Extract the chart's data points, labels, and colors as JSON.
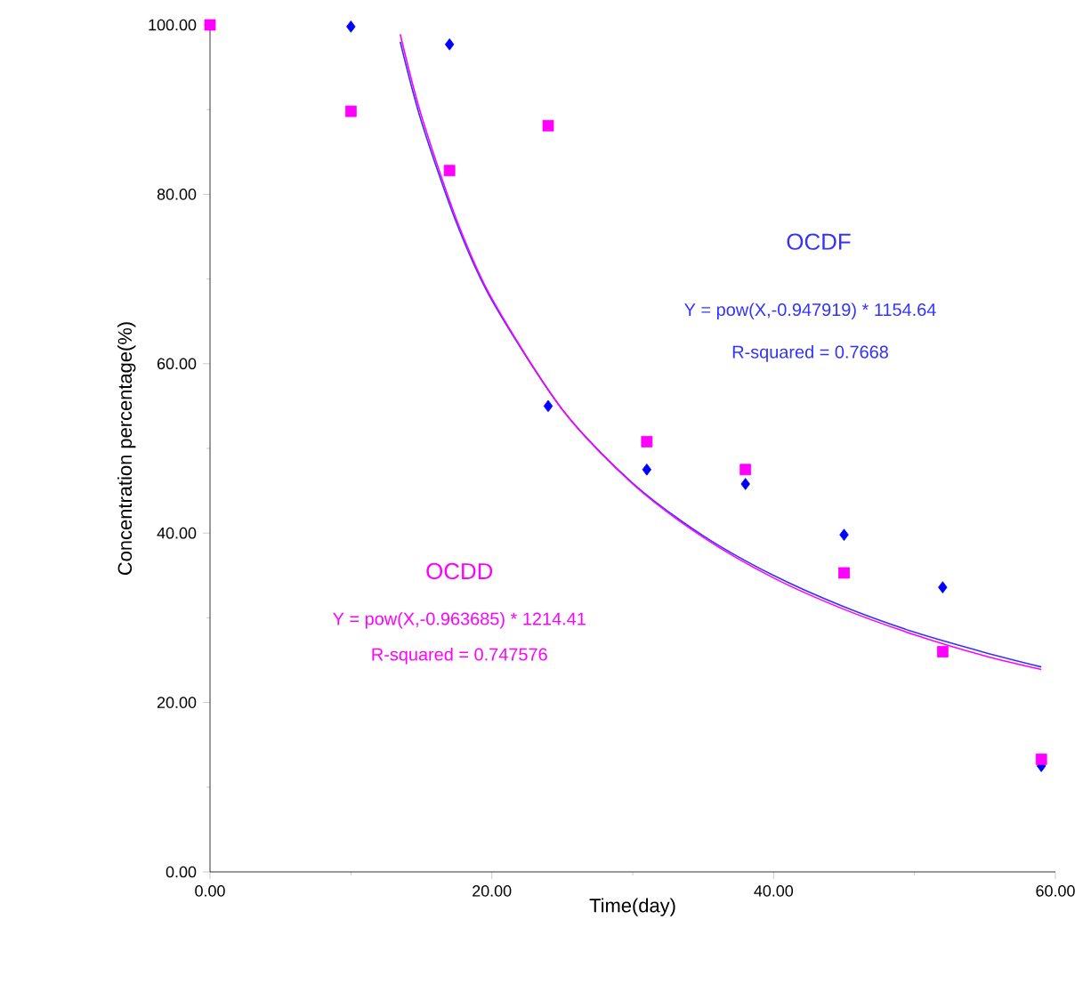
{
  "chart_data": {
    "type": "scatter",
    "xlabel": "Time(day)",
    "ylabel": "Concentration percentage(%)",
    "xlim": [
      0,
      60
    ],
    "ylim": [
      0,
      100
    ],
    "xticks": [
      {
        "value": 0,
        "label": "0.00"
      },
      {
        "value": 20,
        "label": "20.00"
      },
      {
        "value": 40,
        "label": "40.00"
      },
      {
        "value": 60,
        "label": "60.00"
      }
    ],
    "yticks": [
      {
        "value": 0,
        "label": "0.00"
      },
      {
        "value": 20,
        "label": "20.00"
      },
      {
        "value": 40,
        "label": "40.00"
      },
      {
        "value": 60,
        "label": "60.00"
      },
      {
        "value": 80,
        "label": "80.00"
      },
      {
        "value": 100,
        "label": "100.00"
      }
    ],
    "series": [
      {
        "name": "OCDF",
        "type": "line",
        "color": "#3333ff",
        "marker": "none",
        "x": [
          13.5,
          15,
          17.5,
          20,
          25,
          30,
          35,
          40,
          45,
          50,
          55,
          59
        ],
        "values": [
          98.0,
          88.6,
          76.6,
          67.5,
          54.6,
          45.9,
          39.7,
          35.0,
          31.3,
          28.3,
          25.9,
          24.2
        ]
      },
      {
        "name": "OCDD",
        "type": "line",
        "color": "#ff00ff",
        "marker": "none",
        "x": [
          13.5,
          15,
          17.5,
          20,
          25,
          30,
          35,
          40,
          45,
          50,
          55,
          59
        ],
        "values": [
          98.9,
          89.3,
          77.0,
          67.7,
          54.6,
          45.8,
          39.5,
          34.7,
          31.0,
          28.0,
          25.5,
          23.9
        ]
      },
      {
        "color": "#0000ff",
        "marker": "diamond",
        "x": [
          10,
          17,
          24,
          31,
          38,
          45,
          52,
          59
        ],
        "values": [
          99.8,
          97.7,
          55.0,
          47.5,
          45.8,
          39.8,
          33.6,
          12.5
        ]
      },
      {
        "color": "#ff00ff",
        "marker": "square",
        "x": [
          0,
          10,
          17,
          24,
          31,
          38,
          45,
          52,
          59
        ],
        "values": [
          100,
          89.8,
          82.8,
          88.1,
          50.8,
          47.5,
          35.3,
          26.0,
          13.3
        ]
      }
    ],
    "annotations": [
      "Y = pow(X,-0.947919) * 1154.64",
      "R-squared = 0.7668",
      "Y = pow(X,-0.963685) * 1214.41",
      "R-squared = 0.747576"
    ]
  }
}
